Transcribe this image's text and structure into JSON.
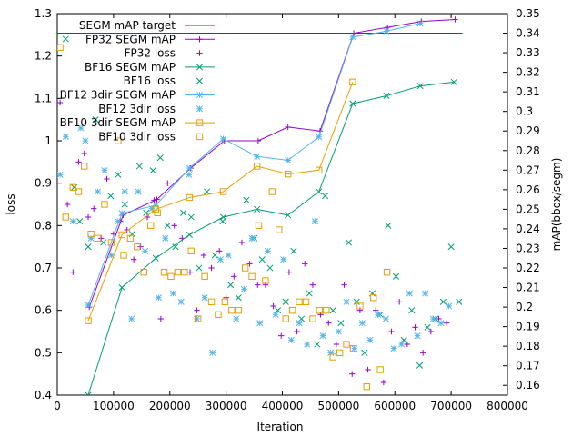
{
  "chart_data": {
    "type": "scatter",
    "xlabel": "Iteration",
    "ylabel": "loss",
    "y2label": "mAP(bbox/segm)",
    "xlim": [
      0,
      800000
    ],
    "ylim": [
      0.4,
      1.3
    ],
    "y2lim": [
      0.155,
      0.35
    ],
    "x_ticks": [
      0,
      100000,
      200000,
      300000,
      400000,
      500000,
      600000,
      700000,
      800000
    ],
    "x_tick_labels": [
      "0",
      "100000",
      "200000",
      "300000",
      "400000",
      "500000",
      "600000",
      "700000",
      "800000"
    ],
    "y_ticks": [
      0.4,
      0.5,
      0.6,
      0.7,
      0.8,
      0.9,
      1.0,
      1.1,
      1.2,
      1.3
    ],
    "y_tick_labels": [
      "0.4",
      "0.5",
      "0.6",
      "0.7",
      "0.8",
      "0.9",
      "1",
      "1.1",
      "1.2",
      "1.3"
    ],
    "y2_ticks": [
      0.16,
      0.17,
      0.18,
      0.19,
      0.2,
      0.21,
      0.22,
      0.23,
      0.24,
      0.25,
      0.26,
      0.27,
      0.28,
      0.29,
      0.3,
      0.31,
      0.32,
      0.33,
      0.34,
      0.35
    ],
    "y2_tick_labels": [
      "0.16",
      "0.17",
      "0.18",
      "0.19",
      "0.2",
      "0.21",
      "0.22",
      "0.23",
      "0.24",
      "0.25",
      "0.26",
      "0.27",
      "0.28",
      "0.29",
      "0.3",
      "0.31",
      "0.32",
      "0.33",
      "0.34",
      "0.35"
    ],
    "grid": false,
    "legend_position": "top-left",
    "series": [
      {
        "name": "SEGM mAP target",
        "kind": "hline",
        "axis": "y2",
        "color": "#9400d3",
        "y": 0.34,
        "x": [
          0,
          720000
        ]
      },
      {
        "name": "FP32 SEGM mAP",
        "kind": "linepoints",
        "marker": "plus",
        "axis": "y2",
        "color": "#9400d3",
        "x": [
          57000,
          117000,
          177000,
          237000,
          297000,
          357000,
          410000,
          467000,
          527000,
          587000,
          647000,
          707000
        ],
        "y": [
          0.2,
          0.247,
          0.255,
          0.271,
          0.285,
          0.285,
          0.292,
          0.29,
          0.34,
          0.343,
          0.346,
          0.347
        ]
      },
      {
        "name": "FP32 loss",
        "kind": "points",
        "marker": "plus",
        "axis": "y",
        "color": "#9400d3",
        "x": [
          5000,
          18000,
          28000,
          38000,
          48000,
          55000,
          65000,
          78000,
          88000,
          100000,
          112000,
          124000,
          136000,
          148000,
          160000,
          172000,
          184000,
          196000,
          208000,
          222000,
          236000,
          248000,
          260000,
          274000,
          288000,
          300000,
          314000,
          328000,
          342000,
          356000,
          370000,
          384000,
          398000,
          412000,
          426000,
          440000,
          454000,
          468000,
          482000,
          496000,
          510000,
          524000,
          538000,
          552000,
          566000,
          580000,
          594000,
          608000,
          622000,
          636000,
          650000,
          664000,
          678000,
          692000
        ],
        "y": [
          1.09,
          0.85,
          0.69,
          0.95,
          0.97,
          0.82,
          0.84,
          0.77,
          0.91,
          0.78,
          0.81,
          0.79,
          0.72,
          0.75,
          0.82,
          0.86,
          0.58,
          0.9,
          0.8,
          0.77,
          0.69,
          0.6,
          0.73,
          0.7,
          0.74,
          0.63,
          0.68,
          0.76,
          0.71,
          0.66,
          0.66,
          0.61,
          0.54,
          0.69,
          0.55,
          0.71,
          0.66,
          0.59,
          0.57,
          0.52,
          0.66,
          0.45,
          0.6,
          0.46,
          0.6,
          0.43,
          0.55,
          0.62,
          0.52,
          0.56,
          0.5,
          0.55,
          0.58,
          0.57
        ]
      },
      {
        "name": "BF16 SEGM mAP",
        "kind": "linepoints",
        "marker": "x",
        "axis": "y2",
        "color": "#009e73",
        "x": [
          55000,
          115000,
          175000,
          235000,
          295000,
          355000,
          410000,
          465000,
          525000,
          585000,
          645000,
          705000
        ],
        "y": [
          0.155,
          0.21,
          0.225,
          0.237,
          0.246,
          0.25,
          0.247,
          0.259,
          0.304,
          0.308,
          0.313,
          0.315
        ]
      },
      {
        "name": "BF16 loss",
        "kind": "points",
        "marker": "x",
        "axis": "y",
        "color": "#009e73",
        "x": [
          15000,
          30000,
          40000,
          55000,
          68000,
          82000,
          95000,
          108000,
          120000,
          133000,
          146000,
          158000,
          170000,
          183000,
          196000,
          210000,
          224000,
          238000,
          252000,
          266000,
          280000,
          294000,
          308000,
          322000,
          336000,
          350000,
          364000,
          378000,
          392000,
          406000,
          420000,
          434000,
          448000,
          462000,
          476000,
          490000,
          504000,
          518000,
          532000,
          546000,
          560000,
          574000,
          588000,
          602000,
          616000,
          630000,
          644000,
          658000,
          672000,
          686000,
          700000,
          714000
        ],
        "y": [
          1.24,
          0.89,
          0.81,
          0.75,
          1.05,
          0.76,
          0.87,
          0.92,
          0.85,
          0.78,
          0.94,
          0.83,
          0.93,
          0.96,
          0.8,
          0.75,
          0.83,
          0.82,
          0.7,
          0.88,
          0.73,
          0.81,
          0.66,
          0.63,
          0.86,
          0.77,
          0.72,
          0.7,
          0.6,
          0.62,
          0.74,
          0.58,
          0.64,
          0.52,
          0.87,
          0.6,
          0.57,
          0.76,
          0.62,
          0.5,
          0.64,
          0.59,
          0.8,
          0.68,
          0.53,
          0.6,
          0.47,
          0.56,
          0.58,
          0.62,
          0.75,
          0.62
        ]
      },
      {
        "name": "BF12 3dir SEGM mAP",
        "kind": "linepoints",
        "marker": "star",
        "axis": "y2",
        "color": "#56b4e9",
        "x": [
          55000,
          115000,
          175000,
          235000,
          295000,
          355000,
          410000,
          465000,
          525000,
          585000,
          645000
        ],
        "y": [
          0.201,
          0.248,
          0.252,
          0.271,
          0.286,
          0.277,
          0.275,
          0.287,
          0.338,
          0.341,
          0.345
        ]
      },
      {
        "name": "BF12 3dir loss",
        "kind": "points",
        "marker": "star",
        "axis": "y",
        "color": "#56b4e9",
        "x": [
          5000,
          15000,
          28000,
          42000,
          50000,
          60000,
          72000,
          84000,
          96000,
          108000,
          120000,
          132000,
          144000,
          156000,
          168000,
          180000,
          192000,
          206000,
          220000,
          234000,
          248000,
          262000,
          276000,
          290000,
          304000,
          318000,
          332000,
          346000,
          360000,
          374000,
          388000,
          402000,
          416000,
          430000,
          444000,
          458000,
          472000,
          486000,
          500000,
          514000,
          528000,
          542000,
          556000,
          570000,
          584000,
          598000,
          612000,
          626000,
          640000,
          654000,
          668000,
          682000,
          696000
        ],
        "y": [
          0.92,
          1.01,
          0.81,
          1.03,
          1.0,
          0.77,
          0.88,
          0.93,
          0.73,
          0.81,
          0.88,
          0.58,
          0.88,
          0.74,
          0.84,
          0.63,
          0.77,
          0.64,
          0.62,
          0.92,
          0.58,
          0.63,
          0.5,
          0.72,
          0.73,
          0.58,
          0.65,
          0.77,
          0.57,
          0.74,
          0.59,
          0.72,
          0.53,
          0.57,
          0.52,
          0.81,
          0.54,
          0.5,
          0.55,
          0.62,
          0.51,
          0.57,
          0.53,
          0.59,
          0.58,
          0.51,
          0.52,
          0.64,
          0.54,
          0.64,
          0.58,
          0.57,
          0.61
        ]
      },
      {
        "name": "BF10 3dir SEGM mAP",
        "kind": "linepoints",
        "marker": "square",
        "axis": "y2",
        "color": "#e69f00",
        "x": [
          55000,
          115000,
          175000,
          235000,
          295000,
          355000,
          410000,
          465000,
          525000
        ],
        "y": [
          0.193,
          0.237,
          0.25,
          0.256,
          0.259,
          0.272,
          0.268,
          0.27,
          0.315
        ]
      },
      {
        "name": "BF10 3dir loss",
        "kind": "points",
        "marker": "square",
        "axis": "y",
        "color": "#e69f00",
        "x": [
          5000,
          15000,
          28000,
          38000,
          48000,
          60000,
          72000,
          84000,
          96000,
          108000,
          118000,
          130000,
          142000,
          154000,
          166000,
          178000,
          190000,
          202000,
          214000,
          226000,
          238000,
          250000,
          262000,
          274000,
          286000,
          298000,
          310000,
          322000,
          334000,
          346000,
          358000,
          370000,
          382000,
          394000,
          406000,
          418000,
          430000,
          442000,
          454000,
          466000,
          478000,
          490000,
          502000,
          514000,
          526000,
          538000,
          550000,
          562000,
          574000,
          586000
        ],
        "y": [
          1.22,
          0.82,
          0.89,
          0.88,
          0.94,
          0.78,
          0.77,
          0.85,
          0.76,
          1.0,
          0.73,
          0.77,
          0.75,
          0.69,
          0.8,
          0.83,
          0.69,
          0.68,
          0.69,
          0.69,
          0.74,
          0.58,
          0.68,
          0.62,
          0.59,
          0.62,
          0.6,
          0.6,
          0.7,
          0.68,
          0.8,
          0.67,
          0.88,
          0.79,
          0.58,
          0.6,
          0.62,
          0.62,
          0.58,
          0.6,
          0.6,
          0.49,
          0.5,
          0.52,
          0.51,
          0.61,
          0.42,
          0.63,
          0.46,
          0.69
        ]
      }
    ]
  }
}
